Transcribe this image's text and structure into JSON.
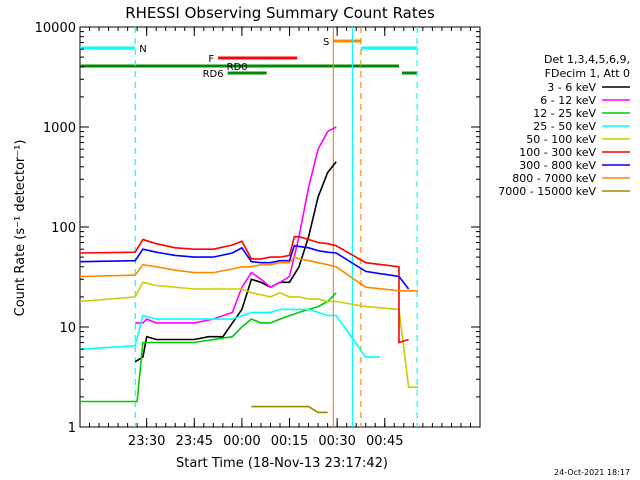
{
  "chart_data": {
    "type": "line",
    "title": "RHESSI Observing Summary Count Rates",
    "xlabel": "Start Time (18-Nov-13 23:17:42)",
    "ylabel": "Count Rate (s⁻¹ detector⁻¹)",
    "x_unit": "minutes after 23:17:42",
    "xlim": [
      0,
      42
    ],
    "ylim": [
      1,
      10000
    ],
    "y_scale": "log",
    "x_ticks": [
      {
        "x": 7.0,
        "label": "23:30"
      },
      {
        "x": 12.0,
        "label": "23:45"
      },
      {
        "x": 17.0,
        "label": "00:00"
      },
      {
        "x": 22.0,
        "label": "00:15"
      },
      {
        "x": 27.0,
        "label": "00:30"
      },
      {
        "x": 32.0,
        "label": "00:45"
      }
    ],
    "y_ticks": [
      {
        "y": 1,
        "label": "1"
      },
      {
        "y": 10,
        "label": "10"
      },
      {
        "y": 100,
        "label": "100"
      },
      {
        "y": 1000,
        "label": "1000"
      },
      {
        "y": 10000,
        "label": "10000"
      }
    ],
    "legend": {
      "placement": "right",
      "header": [
        "Det 1,3,4,5,6,9,",
        "FDecim 1, Att 0"
      ]
    },
    "series": [
      {
        "name": "3 - 6 keV",
        "color": "#000000",
        "points": [
          [
            5.8,
            4.5
          ],
          [
            6.6,
            5
          ],
          [
            7,
            8
          ],
          [
            8,
            7.5
          ],
          [
            10,
            7.5
          ],
          [
            12,
            7.5
          ],
          [
            13.5,
            8
          ],
          [
            15,
            8
          ],
          [
            16,
            11
          ],
          [
            17,
            15
          ],
          [
            18,
            30
          ],
          [
            19,
            28
          ],
          [
            20,
            25
          ],
          [
            21,
            28
          ],
          [
            22,
            28
          ],
          [
            23,
            40
          ],
          [
            24,
            80
          ],
          [
            25,
            200
          ],
          [
            26,
            350
          ],
          [
            26.9,
            450
          ]
        ]
      },
      {
        "name": "6 - 12 keV",
        "color": "#ff00ff",
        "points": [
          [
            5.8,
            11
          ],
          [
            6.6,
            11
          ],
          [
            7,
            12
          ],
          [
            8,
            11
          ],
          [
            10,
            11
          ],
          [
            12,
            11
          ],
          [
            14,
            12
          ],
          [
            16,
            14
          ],
          [
            17,
            25
          ],
          [
            18,
            35
          ],
          [
            19,
            30
          ],
          [
            20,
            25
          ],
          [
            21,
            28
          ],
          [
            22,
            32
          ],
          [
            23,
            80
          ],
          [
            24,
            250
          ],
          [
            25,
            600
          ],
          [
            26,
            900
          ],
          [
            26.9,
            1000
          ]
        ]
      },
      {
        "name": "12 - 25 keV",
        "color": "#00cc00",
        "points": [
          [
            0,
            1.8
          ],
          [
            5.8,
            1.8
          ],
          [
            6.0,
            1.8
          ],
          [
            6.6,
            7
          ],
          [
            8,
            7
          ],
          [
            10,
            7
          ],
          [
            12,
            7
          ],
          [
            14,
            7.5
          ],
          [
            16,
            8
          ],
          [
            17,
            10
          ],
          [
            18,
            12
          ],
          [
            19,
            11
          ],
          [
            20,
            11
          ],
          [
            21,
            12
          ],
          [
            22,
            13
          ],
          [
            23,
            14
          ],
          [
            24,
            15
          ],
          [
            25,
            16
          ],
          [
            26,
            18
          ],
          [
            26.9,
            22
          ]
        ]
      },
      {
        "name": "25 - 50 keV",
        "color": "#00ffff",
        "points": [
          [
            0,
            6
          ],
          [
            5.8,
            6.5
          ],
          [
            6.6,
            13
          ],
          [
            8,
            12
          ],
          [
            10,
            12
          ],
          [
            12,
            12
          ],
          [
            14,
            12
          ],
          [
            16,
            12
          ],
          [
            17,
            13
          ],
          [
            18,
            14
          ],
          [
            19,
            14
          ],
          [
            20,
            14
          ],
          [
            21,
            15
          ],
          [
            22,
            15
          ],
          [
            23,
            15
          ],
          [
            24,
            15
          ],
          [
            25,
            14
          ],
          [
            26,
            13
          ],
          [
            26.9,
            13
          ],
          [
            30.0,
            5
          ],
          [
            31.5,
            5
          ]
        ]
      },
      {
        "name": "50 - 100 keV",
        "color": "#cccc00",
        "points": [
          [
            0,
            18
          ],
          [
            5.8,
            20
          ],
          [
            6.6,
            28
          ],
          [
            8,
            26
          ],
          [
            10,
            25
          ],
          [
            12,
            24
          ],
          [
            14,
            24
          ],
          [
            16,
            24
          ],
          [
            17,
            24
          ],
          [
            18,
            22
          ],
          [
            19,
            21
          ],
          [
            20,
            20
          ],
          [
            21,
            22
          ],
          [
            22,
            20
          ],
          [
            23,
            20
          ],
          [
            24,
            19
          ],
          [
            25,
            19
          ],
          [
            26,
            18
          ],
          [
            26.9,
            18
          ],
          [
            30.0,
            16
          ],
          [
            33.5,
            15
          ],
          [
            34.5,
            2.5
          ],
          [
            35.5,
            2.5
          ]
        ]
      },
      {
        "name": "100 - 300 keV",
        "color": "#ff0000",
        "points": [
          [
            0,
            55
          ],
          [
            5.8,
            56
          ],
          [
            6.6,
            75
          ],
          [
            8,
            68
          ],
          [
            10,
            62
          ],
          [
            12,
            60
          ],
          [
            14,
            60
          ],
          [
            16,
            66
          ],
          [
            17,
            72
          ],
          [
            18,
            48
          ],
          [
            19,
            48
          ],
          [
            20,
            50
          ],
          [
            21,
            50
          ],
          [
            22,
            52
          ],
          [
            22.5,
            80
          ],
          [
            23,
            80
          ],
          [
            24,
            75
          ],
          [
            25,
            70
          ],
          [
            26,
            68
          ],
          [
            26.9,
            65
          ],
          [
            30.0,
            44
          ],
          [
            33.5,
            40
          ],
          [
            33.5,
            7
          ],
          [
            34.5,
            7.5
          ]
        ]
      },
      {
        "name": "300 - 800 keV",
        "color": "#0000ff",
        "points": [
          [
            0,
            45
          ],
          [
            5.8,
            46
          ],
          [
            6.6,
            60
          ],
          [
            8,
            56
          ],
          [
            10,
            52
          ],
          [
            12,
            50
          ],
          [
            14,
            50
          ],
          [
            16,
            55
          ],
          [
            17,
            62
          ],
          [
            18,
            45
          ],
          [
            19,
            44
          ],
          [
            20,
            44
          ],
          [
            21,
            46
          ],
          [
            22,
            46
          ],
          [
            22.5,
            65
          ],
          [
            23,
            64
          ],
          [
            24,
            62
          ],
          [
            25,
            58
          ],
          [
            26,
            56
          ],
          [
            26.9,
            55
          ],
          [
            30.0,
            36
          ],
          [
            33.5,
            32
          ],
          [
            34.5,
            24
          ]
        ]
      },
      {
        "name": "800 - 7000 keV",
        "color": "#ff8800",
        "points": [
          [
            0,
            32
          ],
          [
            5.8,
            33
          ],
          [
            6.6,
            42
          ],
          [
            8,
            40
          ],
          [
            10,
            37
          ],
          [
            12,
            35
          ],
          [
            14,
            35
          ],
          [
            16,
            38
          ],
          [
            17,
            40
          ],
          [
            18,
            40
          ],
          [
            19,
            42
          ],
          [
            20,
            42
          ],
          [
            21,
            44
          ],
          [
            22,
            44
          ],
          [
            22.5,
            50
          ],
          [
            23,
            48
          ],
          [
            24,
            46
          ],
          [
            25,
            44
          ],
          [
            26,
            42
          ],
          [
            26.9,
            40
          ],
          [
            30.0,
            25
          ],
          [
            33.5,
            23
          ],
          [
            35.5,
            23
          ]
        ]
      },
      {
        "name": "7000 - 15000 keV",
        "color": "#998800",
        "points": [
          [
            18,
            1.6
          ],
          [
            19,
            1.6
          ],
          [
            20,
            1.6
          ],
          [
            21,
            1.6
          ],
          [
            22,
            1.6
          ],
          [
            23,
            1.6
          ],
          [
            24,
            1.6
          ],
          [
            25,
            1.4
          ],
          [
            26,
            1.4
          ]
        ]
      }
    ],
    "vertical_lines": [
      {
        "x": 5.8,
        "color": "#00ffff",
        "style": "dashed"
      },
      {
        "x": 26.6,
        "color": "#ff8800",
        "style": "solid"
      },
      {
        "x": 28.6,
        "color": "#00ffff",
        "style": "solid"
      },
      {
        "x": 29.5,
        "color": "#ff8800",
        "style": "dashed"
      },
      {
        "x": 35.4,
        "color": "#00ffff",
        "style": "dashed"
      }
    ],
    "flag_bars": [
      {
        "label": "N",
        "color": "#00ffff",
        "x": [
          0,
          5.8
        ],
        "level": 0
      },
      {
        "label": "",
        "color": "#00ffff",
        "x": [
          29.5,
          35.4
        ],
        "level": 0
      },
      {
        "label": "S",
        "color": "#ff8800",
        "x": [
          26.6,
          29.5
        ],
        "level": -1
      },
      {
        "label": "F",
        "color": "#ff0000",
        "x": [
          14.5,
          22.8
        ],
        "level": 1
      },
      {
        "label": "RD0",
        "color": "#008800",
        "x": [
          0,
          33.5
        ],
        "level": 2
      },
      {
        "label": "",
        "color": "#008800",
        "x": [
          33.8,
          35.4
        ],
        "level": 3
      },
      {
        "label": "RD6",
        "color": "#008800",
        "x": [
          15.5,
          19.6
        ],
        "level": 3
      }
    ],
    "footer_timestamp": "24-Oct-2021 18:17"
  }
}
